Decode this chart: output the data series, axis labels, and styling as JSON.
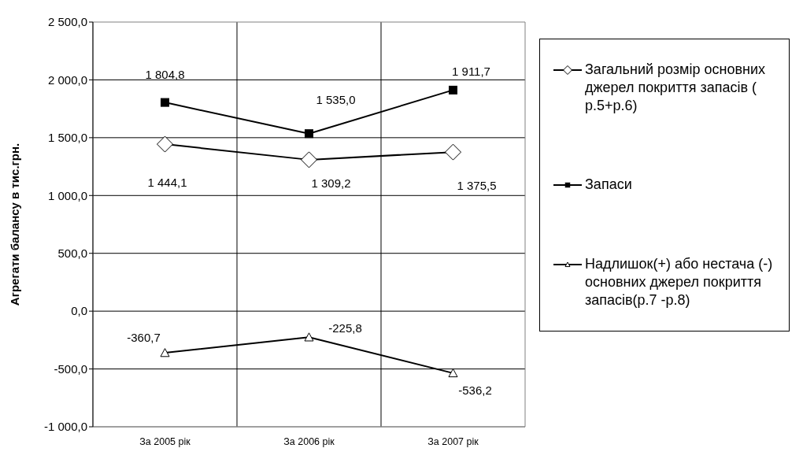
{
  "chart_data": {
    "type": "line",
    "ylabel": "Агрегати балансу в тис.грн.",
    "categories": [
      "За 2005 рік",
      "За 2006 рік",
      "За 2007 рік"
    ],
    "series": [
      {
        "name": "Загальний розмір основних джерел покриття запасів ( р.5+р.6)",
        "color": "#000000",
        "marker": "diamond",
        "values": [
          1444.1,
          1309.2,
          1375.5
        ],
        "value_labels": [
          "1 444,1",
          "1 309,2",
          "1 375,5"
        ]
      },
      {
        "name": "Запаси",
        "color": "#000000",
        "marker": "square",
        "values": [
          1804.8,
          1535.0,
          1911.7
        ],
        "value_labels": [
          "1 804,8",
          "1 535,0",
          "1 911,7"
        ]
      },
      {
        "name": "Надлишок(+) або нестача (-) основних джерел покриття запасів(р.7 -р.8)",
        "color": "#000000",
        "marker": "triangle",
        "values": [
          -360.7,
          -225.8,
          -536.2
        ],
        "value_labels": [
          "-360,7",
          "-225,8",
          "-536,2"
        ]
      }
    ],
    "ylim": [
      -1000,
      2500
    ],
    "yticks": [
      {
        "value": -1000,
        "label": "-1 000,0"
      },
      {
        "value": -500,
        "label": "-500,0"
      },
      {
        "value": 0,
        "label": "0,0"
      },
      {
        "value": 500,
        "label": "500,0"
      },
      {
        "value": 1000,
        "label": "1 000,0"
      },
      {
        "value": 1500,
        "label": "1 500,0"
      },
      {
        "value": 2000,
        "label": "2 000,0"
      },
      {
        "value": 2500,
        "label": "2 500,0"
      }
    ],
    "grid": true,
    "legend": "right",
    "line_style": "solid"
  }
}
